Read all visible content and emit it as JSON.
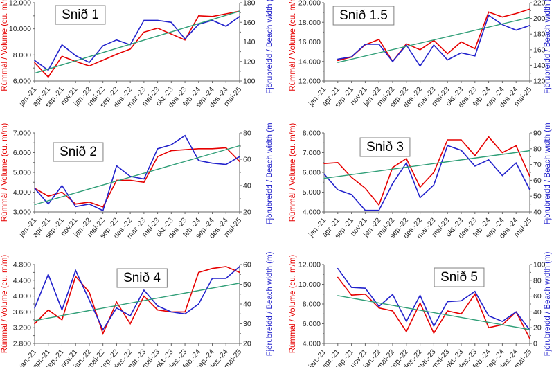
{
  "axis_titles": {
    "left": "Rúmmál / Volume (cu. m/m)",
    "right": "Fjörubreidd / Beach width (m)"
  },
  "colors": {
    "volume": "#e60000",
    "beach_width": "#2222cc",
    "trend": "#2f9e77",
    "axis_line": "#666666",
    "tick_text": "#262626",
    "title_text": "#000000",
    "title_box_border": "#808080",
    "title_box_fill": "#ffffff"
  },
  "categories": [
    "jan.-21",
    "apr.-21",
    "sep.-21",
    "nov.21",
    "jan.-22",
    "maí-22",
    "sep.-22",
    "des.-22",
    "mar.-23",
    "maí-23",
    "okt.-23",
    "des.-23",
    "feb.-24",
    "sep.-24",
    "des.-24",
    "maí-25"
  ],
  "chart_data": [
    {
      "type": "line",
      "title": "Snið 1",
      "xlabel": "",
      "left_axis": {
        "min": 6000,
        "max": 12000,
        "ticks": [
          6000,
          8000,
          10000,
          12000
        ]
      },
      "right_axis": {
        "min": 100,
        "max": 180,
        "ticks": [
          100,
          120,
          140,
          160,
          180
        ]
      },
      "series": [
        {
          "name": "volume",
          "axis": "left",
          "color": "volume",
          "values": [
            7400,
            6300,
            7900,
            7500,
            7150,
            7600,
            8050,
            8450,
            9750,
            10050,
            9600,
            9150,
            11000,
            10950,
            11150,
            11350
          ]
        },
        {
          "name": "beach-width",
          "axis": "right",
          "color": "beach_width",
          "values": [
            121,
            111,
            137,
            126,
            119,
            136,
            142,
            137,
            162,
            162,
            160,
            143,
            158,
            162,
            156,
            166
          ]
        },
        {
          "name": "trend",
          "axis": "left",
          "color": "trend",
          "trend": [
            6600,
            11350
          ]
        }
      ]
    },
    {
      "type": "line",
      "title": "Snið 1.5",
      "xlabel": "",
      "left_axis": {
        "min": 12000,
        "max": 20000,
        "ticks": [
          12000,
          14000,
          16000,
          18000,
          20000
        ]
      },
      "right_axis": {
        "min": 120,
        "max": 220,
        "ticks": [
          120,
          140,
          160,
          180,
          200,
          220
        ]
      },
      "series": [
        {
          "name": "volume",
          "axis": "left",
          "color": "volume",
          "values": [
            null,
            14100,
            14450,
            15700,
            16250,
            14000,
            15800,
            15200,
            16150,
            14800,
            16000,
            15300,
            19050,
            18550,
            18900,
            19350
          ]
        },
        {
          "name": "beach-width",
          "axis": "right",
          "color": "beach_width",
          "values": [
            null,
            148,
            151,
            167,
            167,
            145,
            166,
            139,
            166,
            147,
            156,
            152,
            204,
            192,
            185,
            191
          ]
        },
        {
          "name": "trend",
          "axis": "left",
          "color": "trend",
          "trend": [
            13900,
            18500
          ]
        }
      ]
    },
    {
      "type": "line",
      "title": "Snið 2",
      "xlabel": "",
      "left_axis": {
        "min": 3000,
        "max": 7000,
        "ticks": [
          3000,
          4000,
          5000,
          6000,
          7000
        ]
      },
      "right_axis": {
        "min": 20,
        "max": 80,
        "ticks": [
          20,
          40,
          60,
          80
        ]
      },
      "series": [
        {
          "name": "volume",
          "axis": "left",
          "color": "volume",
          "values": [
            4200,
            3800,
            4000,
            3400,
            3500,
            3250,
            4600,
            4600,
            4500,
            5800,
            6100,
            6150,
            6200,
            6200,
            6250,
            5550
          ]
        },
        {
          "name": "beach-width",
          "axis": "right",
          "color": "beach_width",
          "values": [
            38,
            26,
            40,
            24,
            26,
            21,
            55,
            47,
            45,
            68,
            71,
            78,
            59,
            57,
            56,
            62
          ]
        },
        {
          "name": "trend",
          "axis": "left",
          "color": "trend",
          "trend": [
            3370,
            6350
          ]
        }
      ]
    },
    {
      "type": "line",
      "title": "Snið 3",
      "xlabel": "",
      "left_axis": {
        "min": 4000,
        "max": 8000,
        "ticks": [
          4000,
          5000,
          6000,
          7000,
          8000
        ]
      },
      "right_axis": {
        "min": 40,
        "max": 90,
        "ticks": [
          40,
          50,
          60,
          70,
          80,
          90
        ]
      },
      "series": [
        {
          "name": "volume",
          "axis": "left",
          "color": "volume",
          "values": [
            6450,
            6500,
            5750,
            5200,
            4350,
            6250,
            6700,
            5250,
            6000,
            7650,
            7650,
            6850,
            7800,
            7000,
            7350,
            5800
          ]
        },
        {
          "name": "beach-width",
          "axis": "right",
          "color": "beach_width",
          "values": [
            64,
            54,
            51,
            41,
            41,
            58,
            71,
            49,
            57,
            82,
            79,
            69,
            73,
            63,
            71,
            54
          ]
        },
        {
          "name": "trend",
          "axis": "left",
          "color": "trend",
          "trend": [
            5700,
            7100
          ]
        }
      ]
    },
    {
      "type": "line",
      "title": "Snið 4",
      "xlabel": "",
      "left_axis": {
        "min": 2800,
        "max": 4800,
        "ticks": [
          2800,
          3200,
          3600,
          4000,
          4400,
          4800
        ]
      },
      "right_axis": {
        "min": 20,
        "max": 60,
        "ticks": [
          20,
          30,
          40,
          50,
          60
        ]
      },
      "series": [
        {
          "name": "volume",
          "axis": "left",
          "color": "volume",
          "values": [
            3300,
            3650,
            3400,
            4500,
            4100,
            3050,
            3850,
            3300,
            4000,
            3650,
            3600,
            3600,
            4600,
            4700,
            4750,
            4600
          ]
        },
        {
          "name": "beach-width",
          "axis": "right",
          "color": "beach_width",
          "values": [
            38,
            55,
            37,
            57,
            42,
            27,
            38,
            34,
            47,
            39,
            36,
            35,
            40,
            53,
            53,
            59
          ]
        },
        {
          "name": "trend",
          "axis": "left",
          "color": "trend",
          "trend": [
            3380,
            4330
          ]
        }
      ]
    },
    {
      "type": "line",
      "title": "Snið 5",
      "xlabel": "",
      "left_axis": {
        "min": 4000,
        "max": 12000,
        "ticks": [
          4000,
          6000,
          8000,
          10000,
          12000
        ]
      },
      "right_axis": {
        "min": 0,
        "max": 100,
        "ticks": [
          0,
          20,
          40,
          60,
          80,
          100
        ]
      },
      "series": [
        {
          "name": "volume",
          "axis": "left",
          "color": "volume",
          "values": [
            null,
            10700,
            8900,
            9000,
            7600,
            7300,
            5200,
            8100,
            5050,
            7300,
            7000,
            9000,
            5600,
            5900,
            7200,
            4500
          ]
        },
        {
          "name": "beach-width",
          "axis": "right",
          "color": "beach_width",
          "values": [
            null,
            95,
            71,
            70,
            47,
            62,
            28,
            61,
            22,
            53,
            54,
            66,
            35,
            28,
            40,
            17
          ]
        },
        {
          "name": "trend",
          "axis": "left",
          "color": "trend",
          "trend": [
            8850,
            5400
          ]
        }
      ]
    }
  ]
}
